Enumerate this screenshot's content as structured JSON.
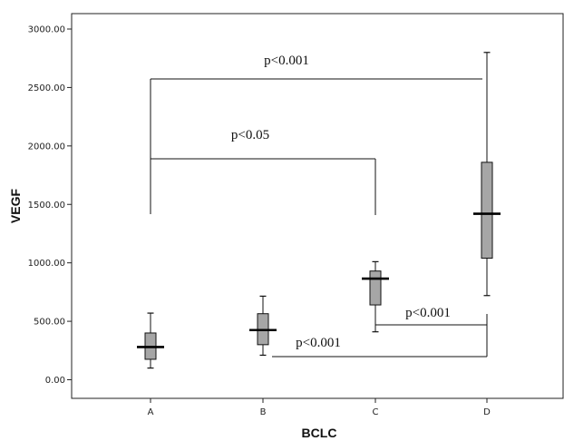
{
  "chart_data": {
    "type": "box",
    "xlabel": "BCLC",
    "ylabel": "VEGF",
    "ylim": [
      -170,
      3050
    ],
    "y_ticks": [
      "0.00",
      "500.00",
      "1000.00",
      "1500.00",
      "2000.00",
      "2500.00",
      "3000.00"
    ],
    "y_tick_values": [
      0,
      500,
      1000,
      1500,
      2000,
      2500,
      3000
    ],
    "categories": [
      "A",
      "B",
      "C",
      "D"
    ],
    "boxes": [
      {
        "category": "A",
        "min": 100,
        "q1": 175,
        "median": 280,
        "q3": 400,
        "max": 570
      },
      {
        "category": "B",
        "min": 210,
        "q1": 300,
        "median": 425,
        "q3": 565,
        "max": 715
      },
      {
        "category": "C",
        "min": 410,
        "q1": 640,
        "median": 865,
        "q3": 930,
        "max": 1010
      },
      {
        "category": "D",
        "min": 720,
        "q1": 1040,
        "median": 1420,
        "q3": 1860,
        "max": 2800
      }
    ],
    "box_color": "#a6a6a6",
    "annotations": [
      {
        "text": "p<0.001",
        "between": [
          "A",
          "D"
        ]
      },
      {
        "text": "p<0.05",
        "between": [
          "A",
          "C"
        ]
      },
      {
        "text": "p<0.001",
        "between": [
          "C",
          "D"
        ]
      },
      {
        "text": "p<0.001",
        "between": [
          "B",
          "D"
        ]
      }
    ],
    "grid": false,
    "legend": "none"
  }
}
